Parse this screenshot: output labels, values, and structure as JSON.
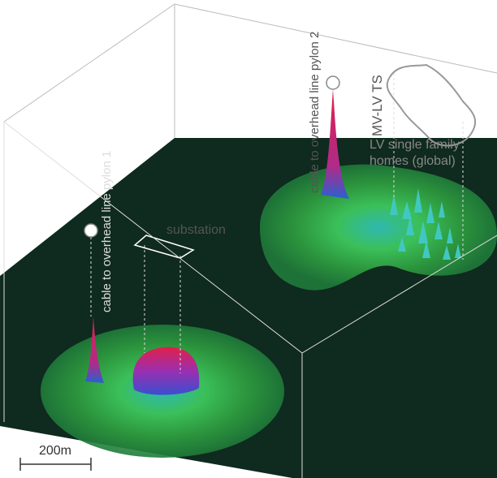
{
  "labels": {
    "pylon_1": "cable to overhead line pylon 1",
    "pylon_2": "cable to overhead line pylon 2",
    "substation": "substation",
    "mv_lv_ts": "MV-LV TS",
    "lv_homes": [
      "LV single family",
      "homes (global)"
    ],
    "scale": "200m"
  }
}
